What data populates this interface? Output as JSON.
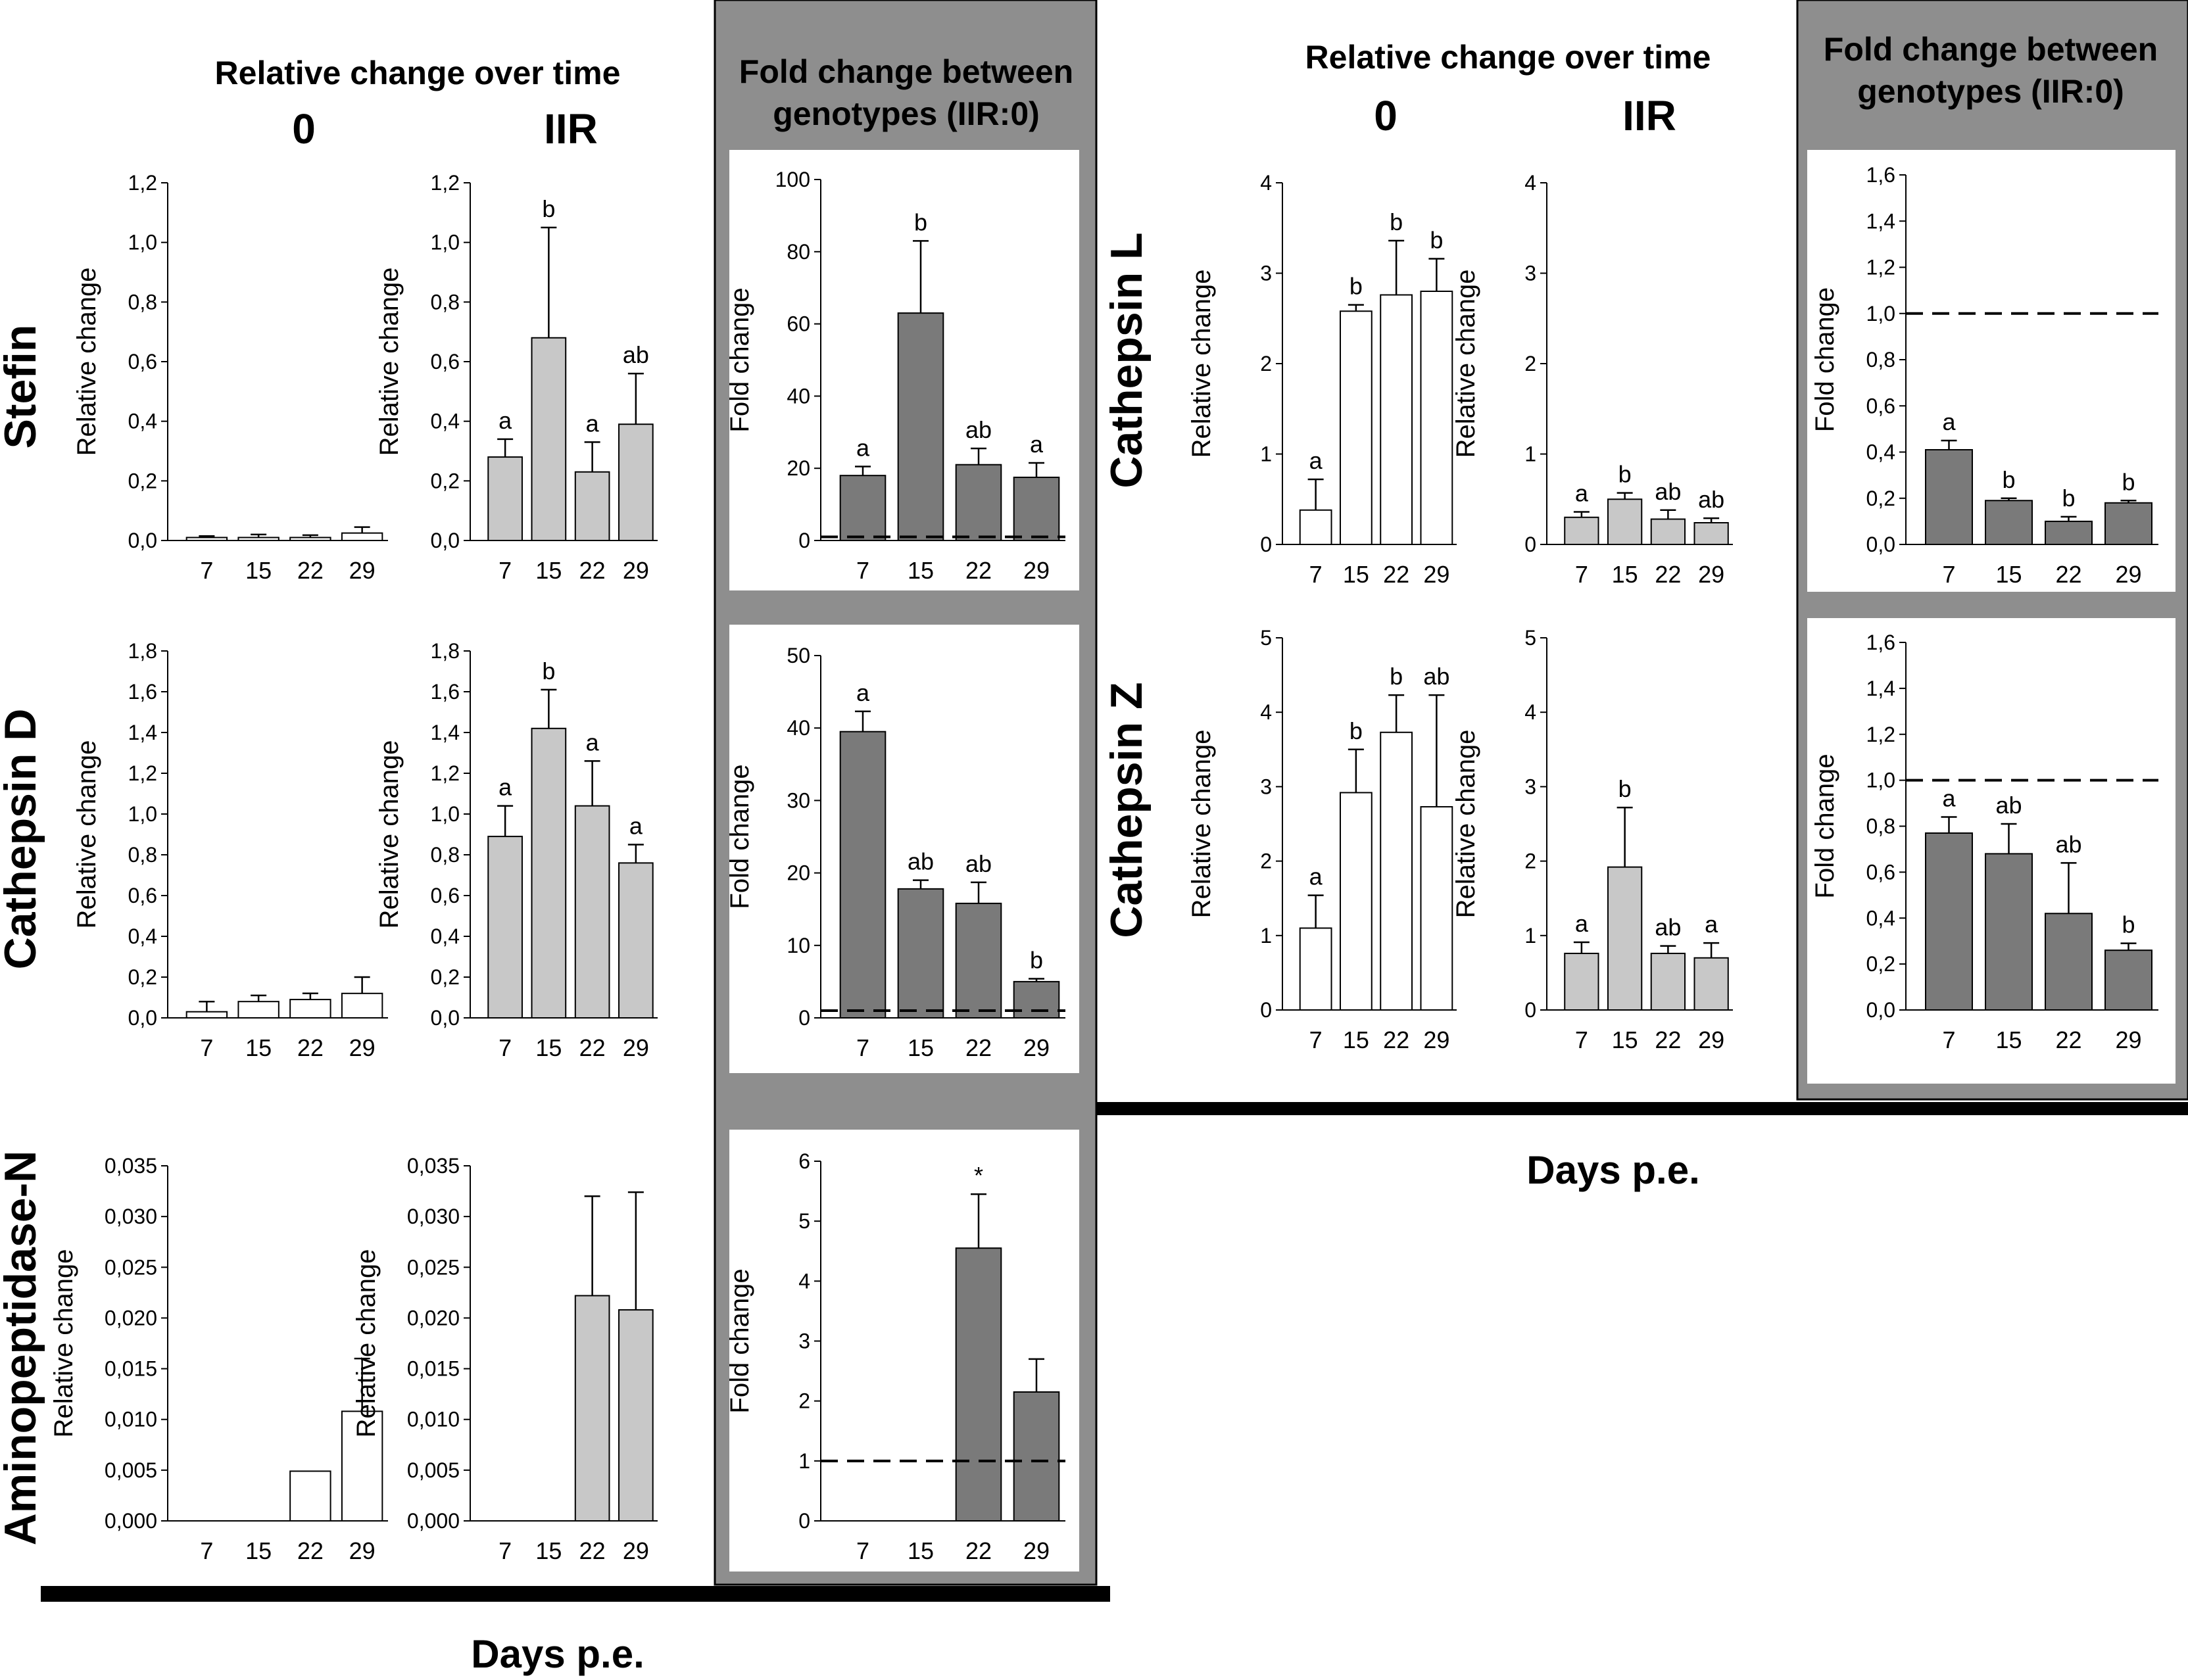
{
  "headers": {
    "relative_change": "Relative change over time",
    "fold_change": "Fold change between genotypes (IIR:0)",
    "fold_change_line1": "Fold change between",
    "fold_change_line2": "genotypes (IIR:0)",
    "genotype_0": "0",
    "genotype_iir": "IIR",
    "days_label": "Days p.e."
  },
  "colors": {
    "bar_0": "#ffffff",
    "bar_iir": "#c8c8c8",
    "bar_fold": "#7a7a7a",
    "fold_background": "#8e8e8e",
    "fold_panel": "#ffffff"
  },
  "chart_data": [
    {
      "id": "stefin-0",
      "gene": "Stefin",
      "genotype": "0",
      "type": "bar",
      "ylabel": "Relative change",
      "xlabel": "Days p.e.",
      "categories": [
        "7",
        "15",
        "22",
        "29"
      ],
      "values": [
        0.01,
        0.01,
        0.01,
        0.025
      ],
      "errors": [
        0.005,
        0.01,
        0.008,
        0.02
      ],
      "letters": [
        "",
        "",
        "",
        ""
      ],
      "ylim": [
        0,
        1.2
      ],
      "yticks": [
        "0,0",
        "0,2",
        "0,4",
        "0,6",
        "0,8",
        "1,0",
        "1,2"
      ]
    },
    {
      "id": "stefin-iir",
      "gene": "Stefin",
      "genotype": "IIR",
      "type": "bar",
      "ylabel": "Relative change",
      "xlabel": "Days p.e.",
      "categories": [
        "7",
        "15",
        "22",
        "29"
      ],
      "values": [
        0.28,
        0.68,
        0.23,
        0.39
      ],
      "errors": [
        0.06,
        0.37,
        0.1,
        0.17
      ],
      "letters": [
        "a",
        "b",
        "a",
        "ab"
      ],
      "ylim": [
        0,
        1.2
      ],
      "yticks": [
        "0,0",
        "0,2",
        "0,4",
        "0,6",
        "0,8",
        "1,0",
        "1,2"
      ]
    },
    {
      "id": "stefin-fold",
      "gene": "Stefin",
      "genotype": "IIR:0",
      "type": "bar",
      "ylabel": "Fold change",
      "xlabel": "Days p.e.",
      "categories": [
        "7",
        "15",
        "22",
        "29"
      ],
      "values": [
        18,
        63,
        21,
        17.5
      ],
      "errors": [
        2.5,
        20,
        4.5,
        4
      ],
      "letters": [
        "a",
        "b",
        "ab",
        "a"
      ],
      "ylim": [
        0,
        100
      ],
      "reference_line": 1,
      "yticks": [
        "0",
        "20",
        "40",
        "60",
        "80",
        "100"
      ]
    },
    {
      "id": "cathd-0",
      "gene": "Cathepsin D",
      "genotype": "0",
      "type": "bar",
      "ylabel": "Relative change",
      "xlabel": "Days p.e.",
      "categories": [
        "7",
        "15",
        "22",
        "29"
      ],
      "values": [
        0.03,
        0.08,
        0.09,
        0.12
      ],
      "errors": [
        0.05,
        0.03,
        0.03,
        0.08
      ],
      "letters": [
        "",
        "",
        "",
        ""
      ],
      "ylim": [
        0,
        1.8
      ],
      "yticks": [
        "0,0",
        "0,2",
        "0,4",
        "0,6",
        "0,8",
        "1,0",
        "1,2",
        "1,4",
        "1,6",
        "1,8"
      ]
    },
    {
      "id": "cathd-iir",
      "gene": "Cathepsin D",
      "genotype": "IIR",
      "type": "bar",
      "ylabel": "Relative change",
      "xlabel": "Days p.e.",
      "categories": [
        "7",
        "15",
        "22",
        "29"
      ],
      "values": [
        0.89,
        1.42,
        1.04,
        0.76
      ],
      "errors": [
        0.15,
        0.19,
        0.22,
        0.09
      ],
      "letters": [
        "a",
        "b",
        "a",
        "a"
      ],
      "ylim": [
        0,
        1.8
      ],
      "yticks": [
        "0,0",
        "0,2",
        "0,4",
        "0,6",
        "0,8",
        "1,0",
        "1,2",
        "1,4",
        "1,6",
        "1,8"
      ]
    },
    {
      "id": "cathd-fold",
      "gene": "Cathepsin D",
      "genotype": "IIR:0",
      "type": "bar",
      "ylabel": "Fold change",
      "xlabel": "Days p.e.",
      "categories": [
        "7",
        "15",
        "22",
        "29"
      ],
      "values": [
        39.5,
        17.8,
        15.8,
        5
      ],
      "errors": [
        2.8,
        1.2,
        2.9,
        0.4
      ],
      "letters": [
        "a",
        "ab",
        "ab",
        "b"
      ],
      "ylim": [
        0,
        50
      ],
      "reference_line": 1,
      "yticks": [
        "0",
        "10",
        "20",
        "30",
        "40",
        "50"
      ]
    },
    {
      "id": "apn-0",
      "gene": "Aminopeptidase-N",
      "genotype": "0",
      "type": "bar",
      "ylabel": "Relative change",
      "xlabel": "Days p.e.",
      "categories": [
        "7",
        "15",
        "22",
        "29"
      ],
      "values": [
        0,
        0,
        0.0049,
        0.0108
      ],
      "errors": [
        0,
        0,
        0,
        0.0052
      ],
      "letters": [
        "",
        "",
        "",
        ""
      ],
      "ylim": [
        0,
        0.035
      ],
      "yticks": [
        "0,000",
        "0,005",
        "0,010",
        "0,015",
        "0,020",
        "0,025",
        "0,030",
        "0,035"
      ]
    },
    {
      "id": "apn-iir",
      "gene": "Aminopeptidase-N",
      "genotype": "IIR",
      "type": "bar",
      "ylabel": "Relative change",
      "xlabel": "Days p.e.",
      "categories": [
        "7",
        "15",
        "22",
        "29"
      ],
      "values": [
        0,
        0,
        0.0222,
        0.0208
      ],
      "errors": [
        0,
        0,
        0.0098,
        0.0116
      ],
      "letters": [
        "",
        "",
        "",
        ""
      ],
      "ylim": [
        0,
        0.035
      ],
      "yticks": [
        "0,000",
        "0,005",
        "0,010",
        "0,015",
        "0,020",
        "0,025",
        "0,030",
        "0,035"
      ]
    },
    {
      "id": "apn-fold",
      "gene": "Aminopeptidase-N",
      "genotype": "IIR:0",
      "type": "bar",
      "ylabel": "Fold change",
      "xlabel": "Days p.e.",
      "categories": [
        "7",
        "15",
        "22",
        "29"
      ],
      "values": [
        0,
        0,
        4.55,
        2.15
      ],
      "errors": [
        0,
        0,
        0.9,
        0.55
      ],
      "letters": [
        "",
        "",
        "*",
        ""
      ],
      "ylim": [
        0,
        6
      ],
      "reference_line": 1,
      "yticks": [
        "0",
        "1",
        "2",
        "3",
        "4",
        "5",
        "6"
      ]
    },
    {
      "id": "cathl-0",
      "gene": "Cathepsin L",
      "genotype": "0",
      "type": "bar",
      "ylabel": "Relative change",
      "xlabel": "Days p.e.",
      "categories": [
        "7",
        "15",
        "22",
        "29"
      ],
      "values": [
        0.38,
        2.58,
        2.76,
        2.8
      ],
      "errors": [
        0.34,
        0.07,
        0.6,
        0.36
      ],
      "letters": [
        "a",
        "b",
        "b",
        "b"
      ],
      "ylim": [
        0,
        4
      ],
      "yticks": [
        "0",
        "1",
        "2",
        "3",
        "4"
      ]
    },
    {
      "id": "cathl-iir",
      "gene": "Cathepsin L",
      "genotype": "IIR",
      "type": "bar",
      "ylabel": "Relative change",
      "xlabel": "Days p.e.",
      "categories": [
        "7",
        "15",
        "22",
        "29"
      ],
      "values": [
        0.3,
        0.5,
        0.28,
        0.24
      ],
      "errors": [
        0.06,
        0.07,
        0.1,
        0.05
      ],
      "letters": [
        "a",
        "b",
        "ab",
        "ab"
      ],
      "ylim": [
        0,
        4
      ],
      "yticks": [
        "0",
        "1",
        "2",
        "3",
        "4"
      ]
    },
    {
      "id": "cathl-fold",
      "gene": "Cathepsin L",
      "genotype": "IIR:0",
      "type": "bar",
      "ylabel": "Fold change",
      "xlabel": "Days p.e.",
      "categories": [
        "7",
        "15",
        "22",
        "29"
      ],
      "values": [
        0.41,
        0.19,
        0.1,
        0.18
      ],
      "errors": [
        0.04,
        0.01,
        0.02,
        0.01
      ],
      "letters": [
        "a",
        "b",
        "b",
        "b"
      ],
      "ylim": [
        0,
        1.6
      ],
      "reference_line": 1,
      "yticks": [
        "0,0",
        "0,2",
        "0,4",
        "0,6",
        "0,8",
        "1,0",
        "1,2",
        "1,4",
        "1,6"
      ]
    },
    {
      "id": "cathz-0",
      "gene": "Cathepsin Z",
      "genotype": "0",
      "type": "bar",
      "ylabel": "Relative change",
      "xlabel": "Days p.e.",
      "categories": [
        "7",
        "15",
        "22",
        "29"
      ],
      "values": [
        1.1,
        2.92,
        3.73,
        2.73
      ],
      "errors": [
        0.44,
        0.58,
        0.5,
        1.5
      ],
      "letters": [
        "a",
        "b",
        "b",
        "ab"
      ],
      "ylim": [
        0,
        5
      ],
      "yticks": [
        "0",
        "1",
        "2",
        "3",
        "4",
        "5"
      ]
    },
    {
      "id": "cathz-iir",
      "gene": "Cathepsin Z",
      "genotype": "IIR",
      "type": "bar",
      "ylabel": "Relative change",
      "xlabel": "Days p.e.",
      "categories": [
        "7",
        "15",
        "22",
        "29"
      ],
      "values": [
        0.76,
        1.92,
        0.76,
        0.7
      ],
      "errors": [
        0.15,
        0.8,
        0.1,
        0.2
      ],
      "letters": [
        "a",
        "b",
        "ab",
        "a"
      ],
      "ylim": [
        0,
        5
      ],
      "yticks": [
        "0",
        "1",
        "2",
        "3",
        "4",
        "5"
      ]
    },
    {
      "id": "cathz-fold",
      "gene": "Cathepsin Z",
      "genotype": "IIR:0",
      "type": "bar",
      "ylabel": "Fold change",
      "xlabel": "Days p.e.",
      "categories": [
        "7",
        "15",
        "22",
        "29"
      ],
      "values": [
        0.77,
        0.68,
        0.42,
        0.26
      ],
      "errors": [
        0.07,
        0.13,
        0.22,
        0.03
      ],
      "letters": [
        "a",
        "ab",
        "ab",
        "b"
      ],
      "ylim": [
        0,
        1.6
      ],
      "reference_line": 1,
      "yticks": [
        "0,0",
        "0,2",
        "0,4",
        "0,6",
        "0,8",
        "1,0",
        "1,2",
        "1,4",
        "1,6"
      ]
    }
  ]
}
